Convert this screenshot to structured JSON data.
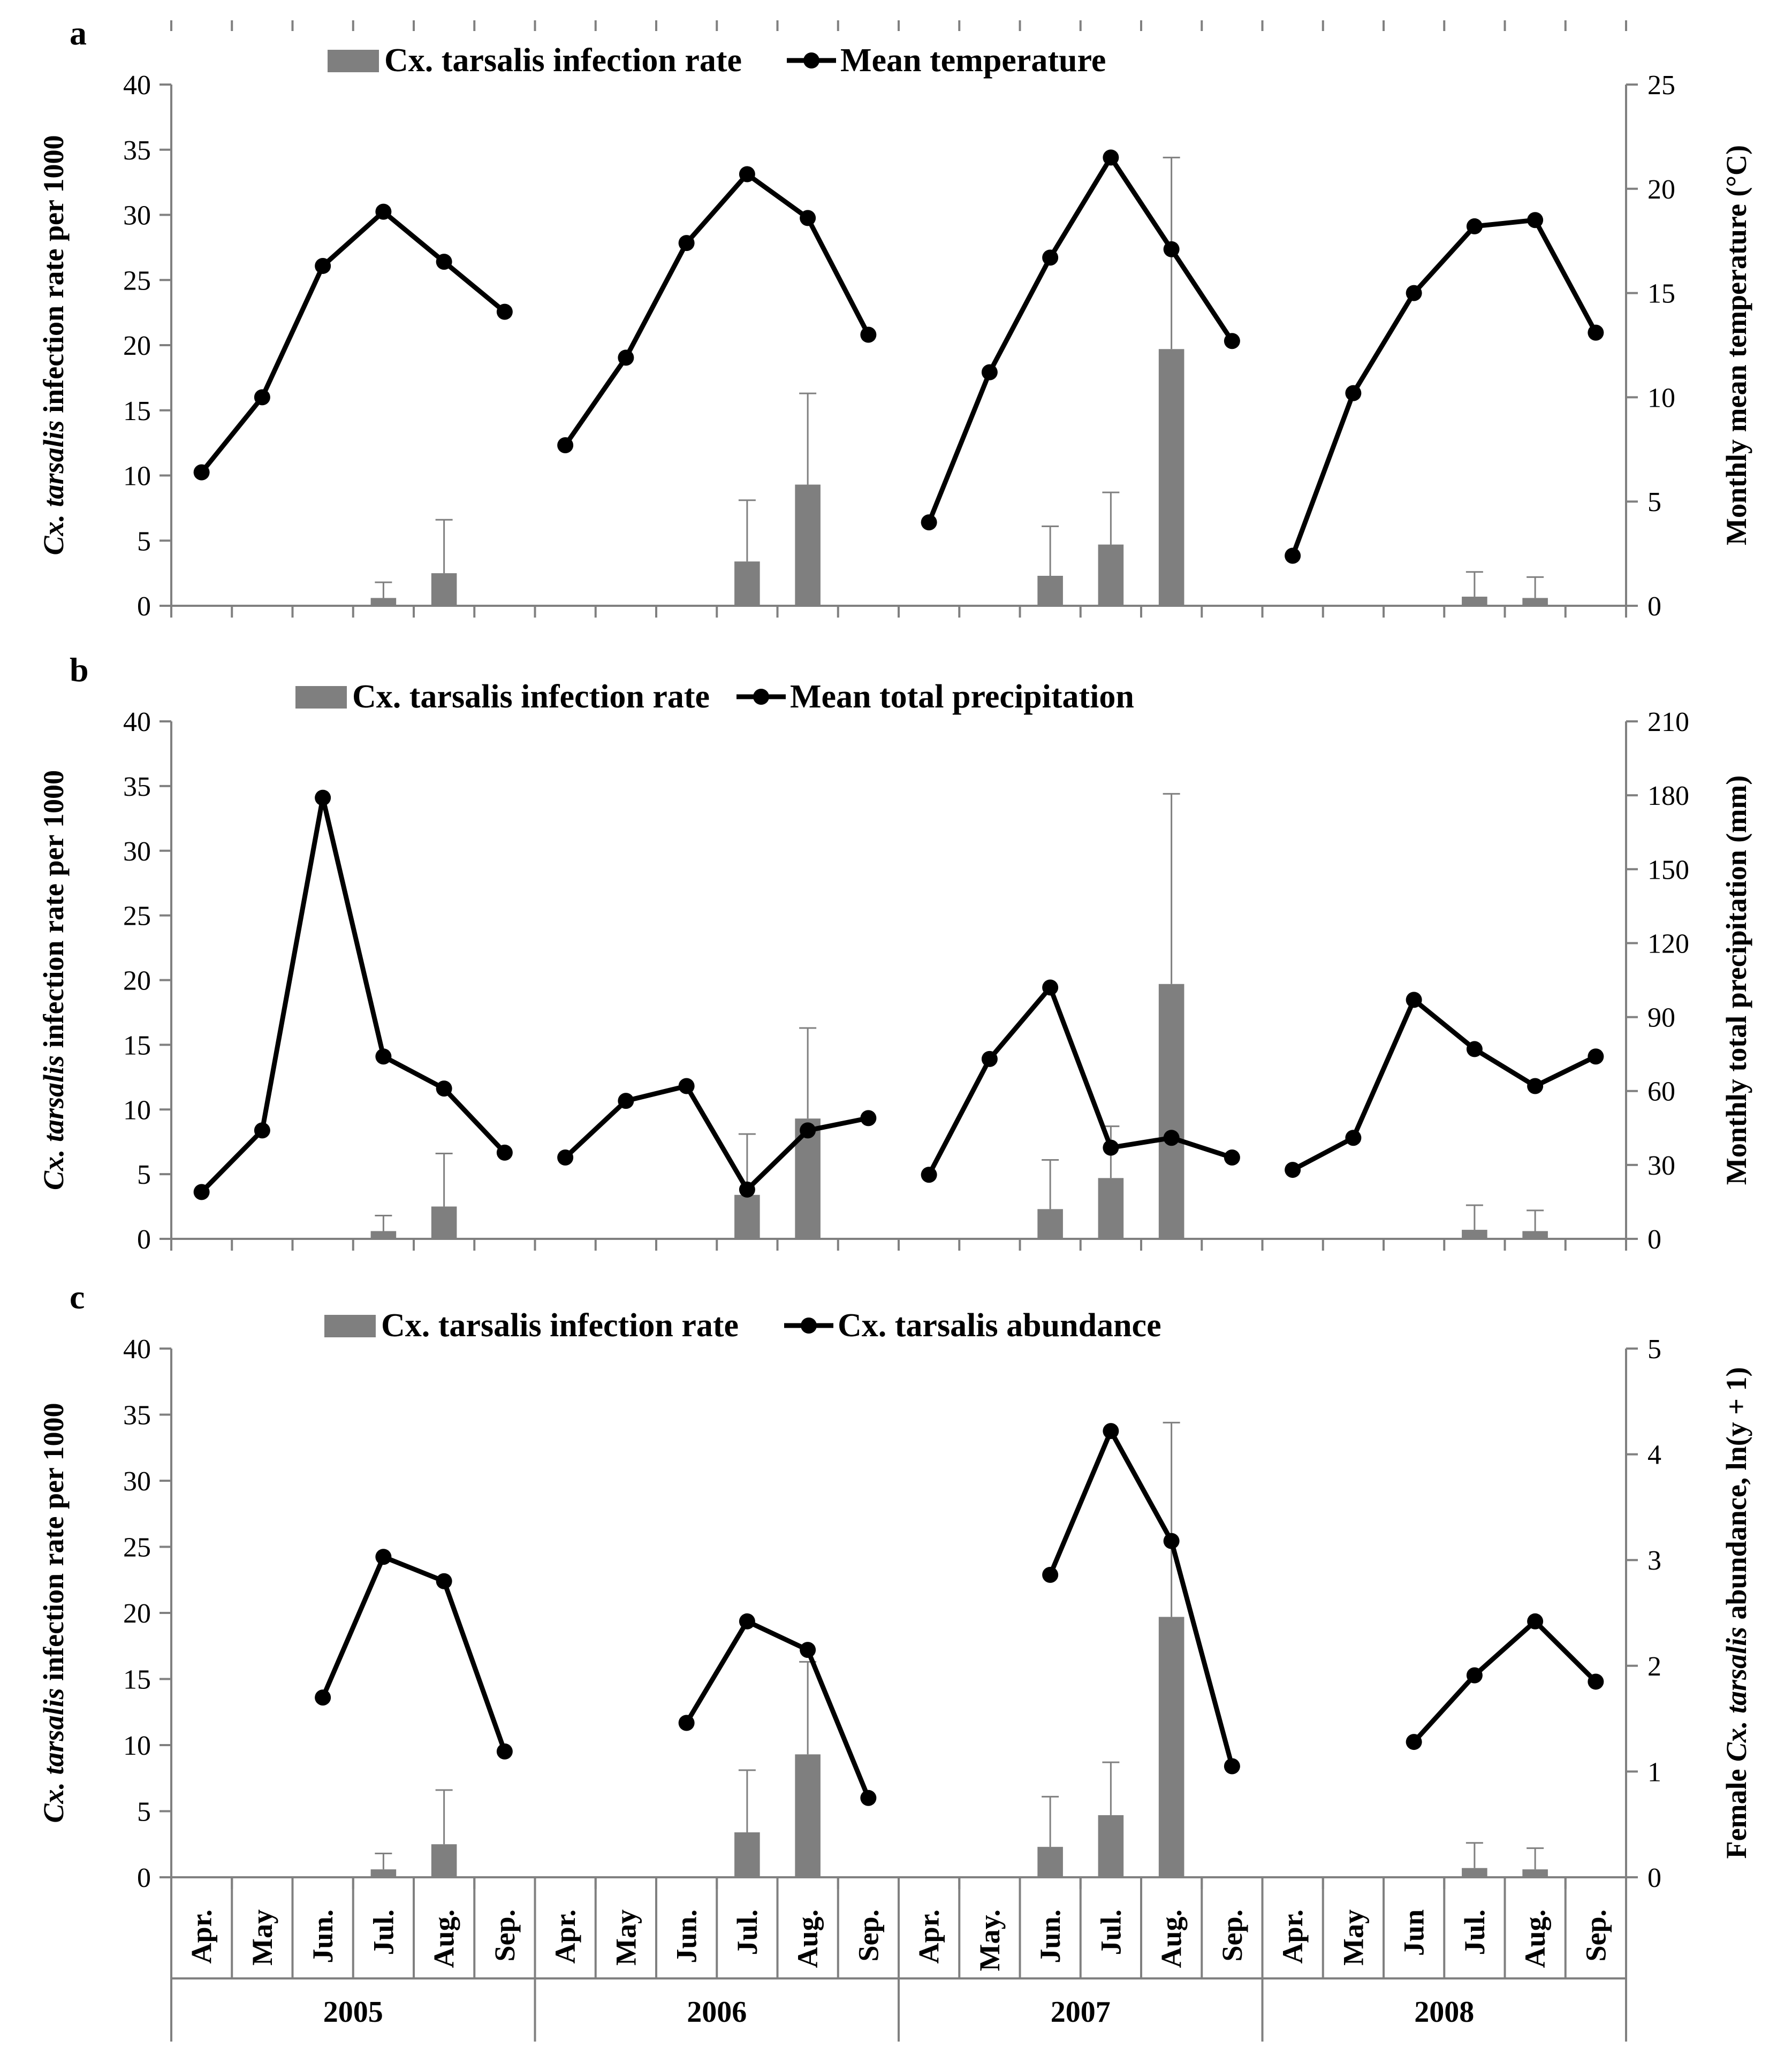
{
  "chart_data": {
    "type": "bar+line",
    "colors": {
      "bars": "#7f7f7f",
      "line": "#000000",
      "axis": "#808080",
      "ink": "#000000"
    },
    "months": [
      "Apr.",
      "May",
      "Jun.",
      "Jul.",
      "Aug.",
      "Sep.",
      "Apr.",
      "May",
      "Jun.",
      "Jul.",
      "Aug.",
      "Sep.",
      "Apr.",
      "May.",
      "Jun.",
      "Jul.",
      "Aug.",
      "Sep.",
      "Apr.",
      "May",
      "Jun",
      "Jul.",
      "Aug.",
      "Sep."
    ],
    "years": [
      "2005",
      "2006",
      "2007",
      "2008"
    ],
    "infection_rate": {
      "name": "Cx. tarsalis infection rate",
      "values": [
        0,
        0,
        0,
        0.6,
        2.5,
        0,
        0,
        0,
        0,
        3.4,
        9.3,
        0,
        0,
        0,
        2.3,
        4.7,
        19.7,
        0,
        0,
        0,
        0,
        0.7,
        0.6,
        0
      ],
      "error_upper": [
        null,
        null,
        null,
        1.8,
        6.6,
        null,
        null,
        null,
        null,
        8.1,
        16.3,
        null,
        null,
        null,
        6.1,
        8.7,
        34.4,
        null,
        null,
        null,
        null,
        2.6,
        2.2,
        null
      ]
    },
    "panels": [
      {
        "letter": "a",
        "legend_bar": "Cx. tarsalis infection rate",
        "legend_line": "Mean temperature",
        "left_axis": {
          "label_italic": "Cx. tarsalis",
          "label_rest": " infection rate per 1000",
          "range": [
            0,
            40
          ],
          "ticks": [
            "0",
            "5",
            "10",
            "15",
            "20",
            "25",
            "30",
            "35",
            "40"
          ]
        },
        "right_axis": {
          "label": "Monthly mean temperature (°C)",
          "range": [
            0,
            25
          ],
          "ticks": [
            "0",
            "5",
            "10",
            "15",
            "20",
            "25"
          ]
        },
        "line_values": [
          [
            6.4,
            10.0,
            16.3,
            18.9,
            16.5,
            14.1
          ],
          [
            7.7,
            11.9,
            17.4,
            20.7,
            18.6,
            13.0
          ],
          [
            4.0,
            11.2,
            16.7,
            21.5,
            17.1,
            12.7
          ],
          [
            2.4,
            10.2,
            15.0,
            18.2,
            18.5,
            13.1
          ]
        ]
      },
      {
        "letter": "b",
        "legend_bar": "Cx. tarsalis infection rate",
        "legend_line": "Mean total precipitation",
        "left_axis": {
          "label_italic": "Cx. tarsalis",
          "label_rest": " infection rate per 1000",
          "range": [
            0,
            40
          ],
          "ticks": [
            "0",
            "5",
            "10",
            "15",
            "20",
            "25",
            "30",
            "35",
            "40"
          ]
        },
        "right_axis": {
          "label": "Monthly total precipitation (mm)",
          "range": [
            0,
            210
          ],
          "ticks": [
            "0",
            "30",
            "60",
            "90",
            "120",
            "150",
            "180",
            "210"
          ]
        },
        "line_values": [
          [
            19,
            44,
            179,
            74,
            61,
            35
          ],
          [
            33,
            56,
            62,
            20,
            44,
            49
          ],
          [
            26,
            73,
            102,
            37,
            41,
            33
          ],
          [
            28,
            41,
            97,
            77,
            62,
            74
          ]
        ]
      },
      {
        "letter": "c",
        "legend_bar": "Cx. tarsalis infection rate",
        "legend_line": "Cx. tarsalis abundance",
        "left_axis": {
          "label_italic": "Cx. tarsalis",
          "label_rest": " infection rate per 1000",
          "range": [
            0,
            40
          ],
          "ticks": [
            "0",
            "5",
            "10",
            "15",
            "20",
            "25",
            "30",
            "35",
            "40"
          ]
        },
        "right_axis": {
          "label_pre": "Female ",
          "label_italic": "Cx. tarsalis",
          "label_rest": " abundance, ln(y + 1)",
          "range": [
            0,
            5
          ],
          "ticks": [
            "0",
            "1",
            "2",
            "3",
            "4",
            "5"
          ]
        },
        "line_values": [
          [
            null,
            null,
            1.7,
            3.03,
            2.8,
            1.19
          ],
          [
            null,
            null,
            1.46,
            2.42,
            2.15,
            0.75
          ],
          [
            null,
            null,
            2.86,
            4.22,
            3.18,
            1.05
          ],
          [
            null,
            null,
            1.28,
            1.91,
            2.42,
            1.85
          ]
        ]
      }
    ]
  }
}
